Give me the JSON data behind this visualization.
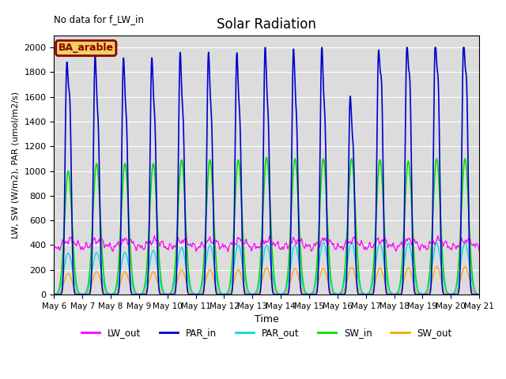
{
  "title": "Solar Radiation",
  "top_left_text": "No data for f_LW_in",
  "legend_label_text": "BA_arable",
  "ylabel": "LW, SW (W/m2), PAR (umol/m2/s)",
  "xlabel": "Time",
  "ylim": [
    0,
    2100
  ],
  "yticks": [
    0,
    200,
    400,
    600,
    800,
    1000,
    1200,
    1400,
    1600,
    1800,
    2000
  ],
  "n_days": 15,
  "start_day": 6,
  "colors": {
    "LW_out": "#FF00FF",
    "PAR_in": "#0000CC",
    "PAR_out": "#00DDDD",
    "SW_in": "#00DD00",
    "SW_out": "#FFA500"
  },
  "background_color": "#DCDCDC",
  "PAR_in_peak1": [
    1720,
    1800,
    1780,
    1780,
    1825,
    1825,
    1820,
    1870,
    1850,
    1870,
    1490,
    1800,
    1840,
    1860,
    1860
  ],
  "PAR_in_peak2": [
    1640,
    1420,
    1430,
    1440,
    1440,
    1450,
    1450,
    1460,
    1460,
    1460,
    1220,
    1790,
    1800,
    1800,
    1800
  ],
  "SW_in_peaks": [
    1000,
    1060,
    1060,
    1060,
    1090,
    1090,
    1090,
    1110,
    1100,
    1100,
    1100,
    1090,
    1080,
    1100,
    1100
  ],
  "SW_out_peaks": [
    170,
    185,
    185,
    185,
    200,
    200,
    200,
    215,
    210,
    210,
    220,
    215,
    215,
    225,
    225
  ],
  "PAR_out_peaks": [
    335,
    340,
    340,
    355,
    380,
    400,
    400,
    400,
    400,
    420,
    420,
    415,
    415,
    415,
    415
  ],
  "LW_base": 360,
  "figsize": [
    6.4,
    4.8
  ],
  "dpi": 100
}
